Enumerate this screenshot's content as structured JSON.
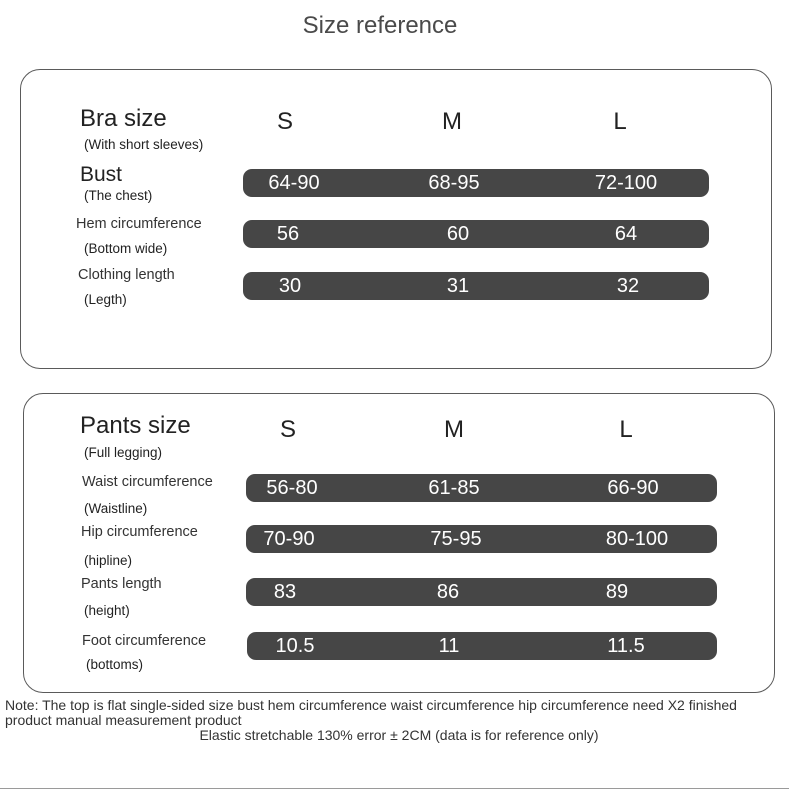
{
  "title": "Size reference",
  "bra": {
    "heading": "Bra size",
    "heading_sub": "(With short sleeves)",
    "sizes": [
      "S",
      "M",
      "L"
    ],
    "rows": [
      {
        "label": "Bust",
        "sub": "(The chest)",
        "values": [
          "64-90",
          "68-95",
          "72-100"
        ]
      },
      {
        "label": "Hem circumference",
        "sub": "(Bottom wide)",
        "values": [
          "56",
          "60",
          "64"
        ]
      },
      {
        "label": "Clothing length",
        "sub": "(Legth)",
        "values": [
          "30",
          "31",
          "32"
        ]
      }
    ]
  },
  "pants": {
    "heading": "Pants size",
    "heading_sub": "(Full legging)",
    "sizes": [
      "S",
      "M",
      "L"
    ],
    "rows": [
      {
        "label": "Waist circumference",
        "sub": "(Waistline)",
        "values": [
          "56-80",
          "61-85",
          "66-90"
        ]
      },
      {
        "label": "Hip circumference",
        "sub": "(hipline)",
        "values": [
          "70-90",
          "75-95",
          "80-100"
        ]
      },
      {
        "label": "Pants length",
        "sub": "(height)",
        "values": [
          "83",
          "86",
          "89"
        ]
      },
      {
        "label": "Foot circumference",
        "sub": "(bottoms)",
        "values": [
          "10.5",
          "11",
          "11.5"
        ]
      }
    ]
  },
  "note": "Note: The top is flat single-sided size bust hem circumference waist circumference hip circumference need X2 finished product manual measurement product",
  "note2": "Elastic stretchable 130% error ± 2CM (data is for reference only)"
}
